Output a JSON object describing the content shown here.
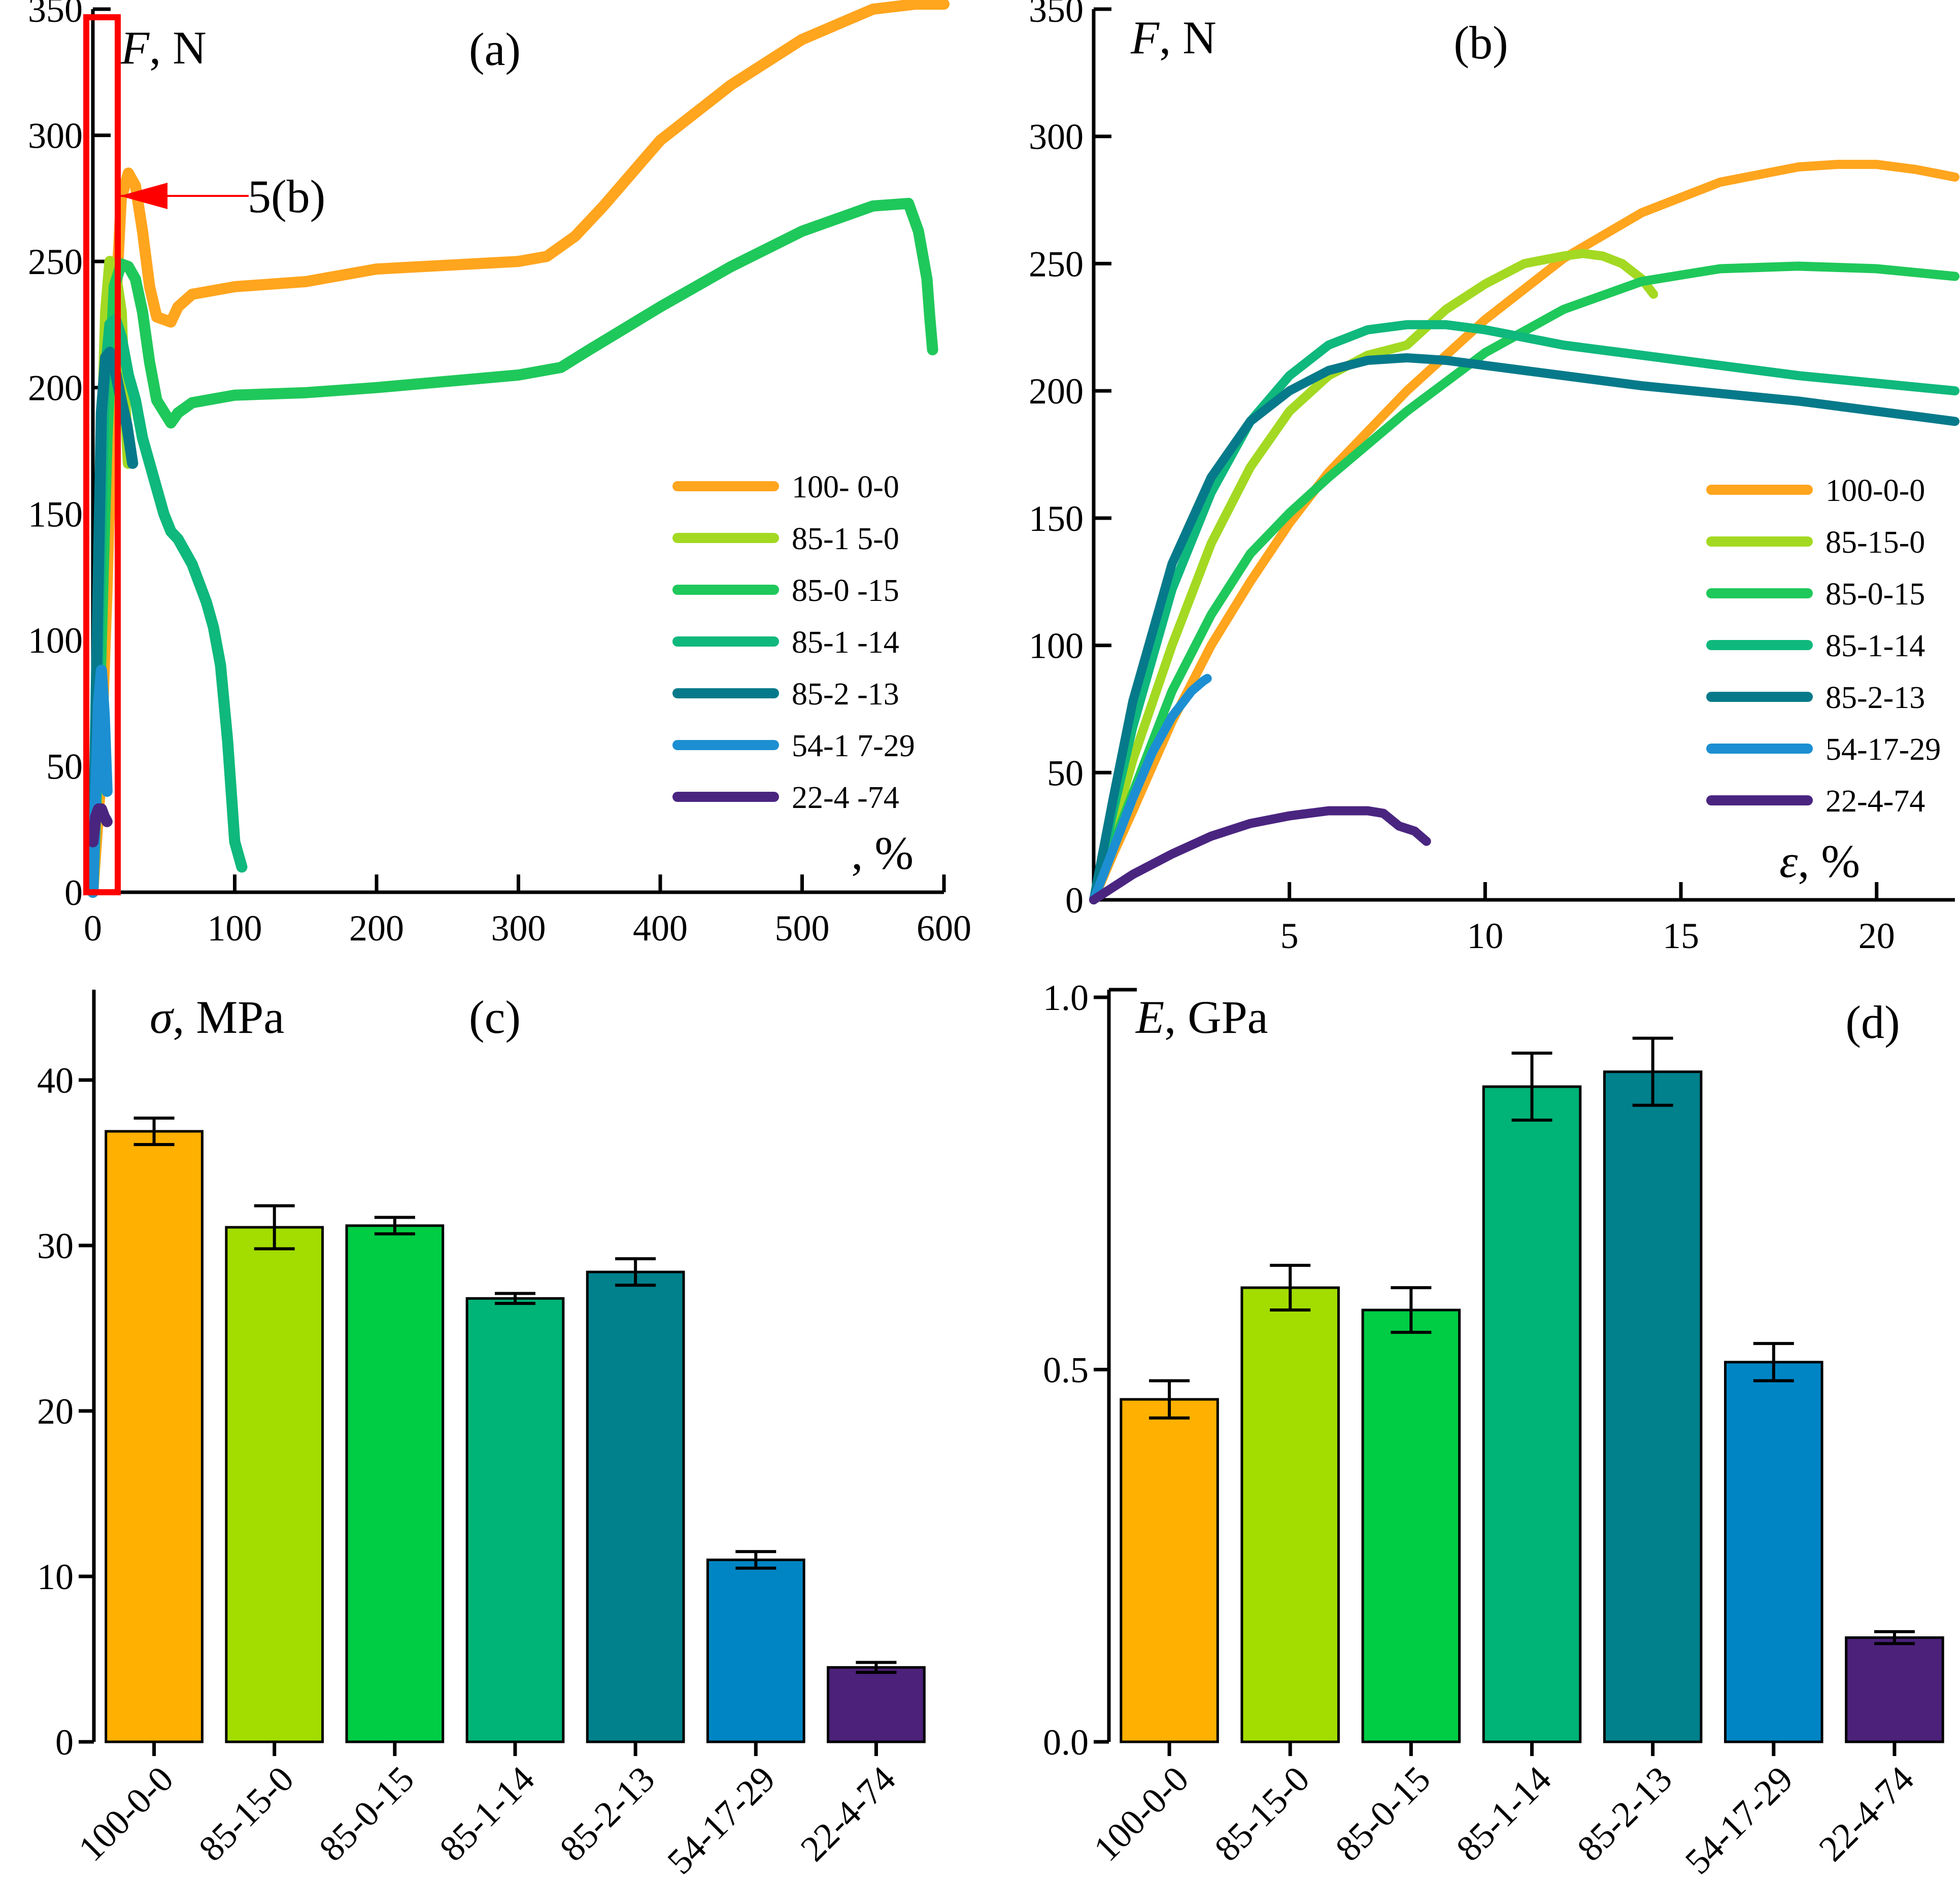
{
  "chart_data": [
    {
      "id": "a",
      "type": "line",
      "panel_label": "(a)",
      "ylabel_var": "F",
      "ylabel_unit": ", N",
      "xlabel": ", %",
      "xlim": [
        0,
        600
      ],
      "ylim": [
        0,
        350
      ],
      "xticks": [
        0,
        100,
        200,
        300,
        400,
        500,
        600
      ],
      "yticks": [
        0,
        50,
        100,
        150,
        200,
        250,
        300,
        350
      ],
      "annotation": "5(b)",
      "legend": [
        "100- 0-0",
        "85-1 5-0",
        "85-0 -15",
        "85-1 -14",
        "85-2 -13",
        "54-1 7-29",
        "22-4 -74"
      ],
      "series": [
        {
          "name": "100-0-0",
          "color": "#ffa51e",
          "x": [
            0,
            5,
            10,
            15,
            20,
            25,
            30,
            35,
            40,
            45,
            55,
            60,
            70,
            100,
            150,
            200,
            300,
            320,
            340,
            360,
            400,
            450,
            500,
            550,
            580,
            600
          ],
          "y": [
            0,
            40,
            120,
            220,
            275,
            285,
            280,
            262,
            240,
            228,
            226,
            232,
            237,
            240,
            242,
            247,
            250,
            252,
            260,
            272,
            298,
            320,
            338,
            350,
            352,
            352
          ]
        },
        {
          "name": "85-15-0",
          "color": "#a3d922",
          "x": [
            0,
            3,
            6,
            9,
            12,
            16,
            20,
            22,
            25
          ],
          "y": [
            0,
            80,
            170,
            230,
            250,
            245,
            230,
            200,
            170
          ]
        },
        {
          "name": "85-0-15",
          "color": "#1fc85a",
          "x": [
            0,
            5,
            10,
            15,
            20,
            25,
            30,
            35,
            40,
            45,
            55,
            60,
            70,
            100,
            150,
            200,
            300,
            330,
            350,
            400,
            450,
            500,
            550,
            575,
            582,
            588,
            590,
            592
          ],
          "y": [
            0,
            80,
            180,
            240,
            249,
            248,
            243,
            230,
            210,
            195,
            186,
            190,
            194,
            197,
            198,
            200,
            205,
            208,
            215,
            232,
            248,
            262,
            272,
            273,
            262,
            243,
            228,
            215
          ]
        },
        {
          "name": "85-1-14",
          "color": "#0fb87c",
          "x": [
            0,
            4,
            8,
            12,
            16,
            20,
            25,
            30,
            35,
            40,
            45,
            50,
            55,
            60,
            70,
            80,
            85,
            90,
            95,
            100,
            105
          ],
          "y": [
            0,
            100,
            200,
            225,
            227,
            220,
            205,
            195,
            180,
            170,
            160,
            150,
            143,
            140,
            130,
            115,
            105,
            90,
            60,
            20,
            10
          ]
        },
        {
          "name": "85-2-13",
          "color": "#067a8a",
          "x": [
            0,
            3,
            6,
            9,
            12,
            16,
            20,
            24,
            28
          ],
          "y": [
            0,
            100,
            190,
            212,
            214,
            206,
            195,
            185,
            170
          ]
        },
        {
          "name": "54-17-29",
          "color": "#1c8fd2",
          "x": [
            0,
            2,
            4,
            6,
            8,
            10
          ],
          "y": [
            0,
            40,
            75,
            88,
            70,
            40
          ]
        },
        {
          "name": "22-4-74",
          "color": "#4a2580",
          "x": [
            0,
            2,
            4,
            6,
            8,
            10
          ],
          "y": [
            20,
            30,
            33,
            33,
            30,
            28
          ]
        }
      ]
    },
    {
      "id": "b",
      "type": "line",
      "panel_label": "(b)",
      "ylabel_var": "F",
      "ylabel_unit": ", N",
      "xlabel_var": "ε",
      "xlabel_unit": ", %",
      "xlim": [
        0,
        22
      ],
      "ylim": [
        0,
        350
      ],
      "xticks": [
        5,
        10,
        15,
        20
      ],
      "yticks": [
        0,
        50,
        100,
        150,
        200,
        250,
        300,
        350
      ],
      "legend": [
        "100-0-0",
        "85-15-0",
        "85-0-15",
        "85-1-14",
        "85-2-13",
        "54-17-29",
        "22-4-74"
      ],
      "series": [
        {
          "name": "100-0-0",
          "color": "#ffa51e",
          "x": [
            0,
            0.5,
            1,
            2,
            3,
            4,
            5,
            6,
            8,
            10,
            12,
            14,
            16,
            18,
            19,
            20,
            21,
            22
          ],
          "y": [
            0,
            18,
            35,
            70,
            100,
            125,
            148,
            168,
            200,
            228,
            252,
            270,
            282,
            288,
            289,
            289,
            287,
            284
          ]
        },
        {
          "name": "85-15-0",
          "color": "#a3d922",
          "x": [
            0,
            0.5,
            1,
            2,
            3,
            4,
            5,
            6,
            7,
            8,
            9,
            10,
            11,
            12,
            12.5,
            13,
            13.5,
            14,
            14.3
          ],
          "y": [
            0,
            28,
            55,
            100,
            140,
            170,
            192,
            206,
            214,
            218,
            232,
            242,
            250,
            253,
            254,
            253,
            250,
            244,
            238
          ]
        },
        {
          "name": "85-0-15",
          "color": "#1fc85a",
          "x": [
            0,
            0.5,
            1,
            2,
            3,
            4,
            5,
            6,
            8,
            10,
            12,
            14,
            16,
            18,
            20,
            22
          ],
          "y": [
            0,
            22,
            42,
            82,
            112,
            136,
            152,
            166,
            192,
            215,
            232,
            243,
            248,
            249,
            248,
            245
          ]
        },
        {
          "name": "85-1-14",
          "color": "#0fb87c",
          "x": [
            0,
            0.5,
            1,
            2,
            3,
            4,
            5,
            6,
            7,
            8,
            9,
            10,
            12,
            14,
            16,
            18,
            20,
            22
          ],
          "y": [
            0,
            35,
            68,
            122,
            160,
            188,
            206,
            218,
            224,
            226,
            226,
            224,
            218,
            214,
            210,
            206,
            203,
            200
          ]
        },
        {
          "name": "85-2-13",
          "color": "#067a8a",
          "x": [
            0,
            0.5,
            1,
            2,
            3,
            4,
            5,
            6,
            7,
            8,
            9,
            10,
            12,
            14,
            16,
            18,
            20,
            22
          ],
          "y": [
            0,
            40,
            78,
            132,
            166,
            188,
            200,
            208,
            212,
            213,
            212,
            210,
            206,
            202,
            199,
            196,
            192,
            188
          ]
        },
        {
          "name": "54-17-29",
          "color": "#1c8fd2",
          "x": [
            0,
            0.5,
            1,
            1.5,
            2,
            2.5,
            2.8,
            2.9
          ],
          "y": [
            0,
            20,
            40,
            58,
            72,
            82,
            86,
            87
          ]
        },
        {
          "name": "22-4-74",
          "color": "#4a2580",
          "x": [
            0,
            1,
            2,
            3,
            4,
            5,
            6,
            7,
            7.4,
            7.8,
            8.2,
            8.5
          ],
          "y": [
            0,
            10,
            18,
            25,
            30,
            33,
            35,
            35,
            34,
            29,
            27,
            23
          ]
        }
      ]
    },
    {
      "id": "c",
      "type": "bar",
      "panel_label": "(c)",
      "ylabel_var": "σ",
      "ylabel_unit": ", MPa",
      "ylim": [
        0,
        45
      ],
      "yticks": [
        0,
        10,
        20,
        30,
        40
      ],
      "categories": [
        "100-0-0",
        "85-15-0",
        "85-0-15",
        "85-1-14",
        "85-2-13",
        "54-17-29",
        "22-4-74"
      ],
      "values": [
        36.9,
        31.1,
        31.2,
        26.8,
        28.4,
        11.0,
        4.5
      ],
      "errors": [
        0.8,
        1.3,
        0.5,
        0.3,
        0.8,
        0.5,
        0.3
      ],
      "colors": [
        "#ffb000",
        "#a3dd00",
        "#00cc44",
        "#00b377",
        "#00818c",
        "#0085c4",
        "#4c217a"
      ]
    },
    {
      "id": "d",
      "type": "bar",
      "panel_label": "(d)",
      "ylabel_var": "E",
      "ylabel_unit": ", GPa",
      "ylim": [
        0,
        1.0
      ],
      "yticks": [
        0.0,
        0.5,
        1.0
      ],
      "ytick_labels": [
        "0.0",
        "0.5",
        "1.0"
      ],
      "categories": [
        "100-0-0",
        "85-15-0",
        "85-0-15",
        "85-1-14",
        "85-2-13",
        "54-17-29",
        "22-4-74"
      ],
      "values": [
        0.46,
        0.61,
        0.58,
        0.88,
        0.9,
        0.51,
        0.14
      ],
      "errors": [
        0.025,
        0.03,
        0.03,
        0.045,
        0.045,
        0.025,
        0.008
      ],
      "colors": [
        "#ffb000",
        "#a3dd00",
        "#00cc44",
        "#00b377",
        "#00818c",
        "#0085c4",
        "#4c217a"
      ]
    }
  ]
}
